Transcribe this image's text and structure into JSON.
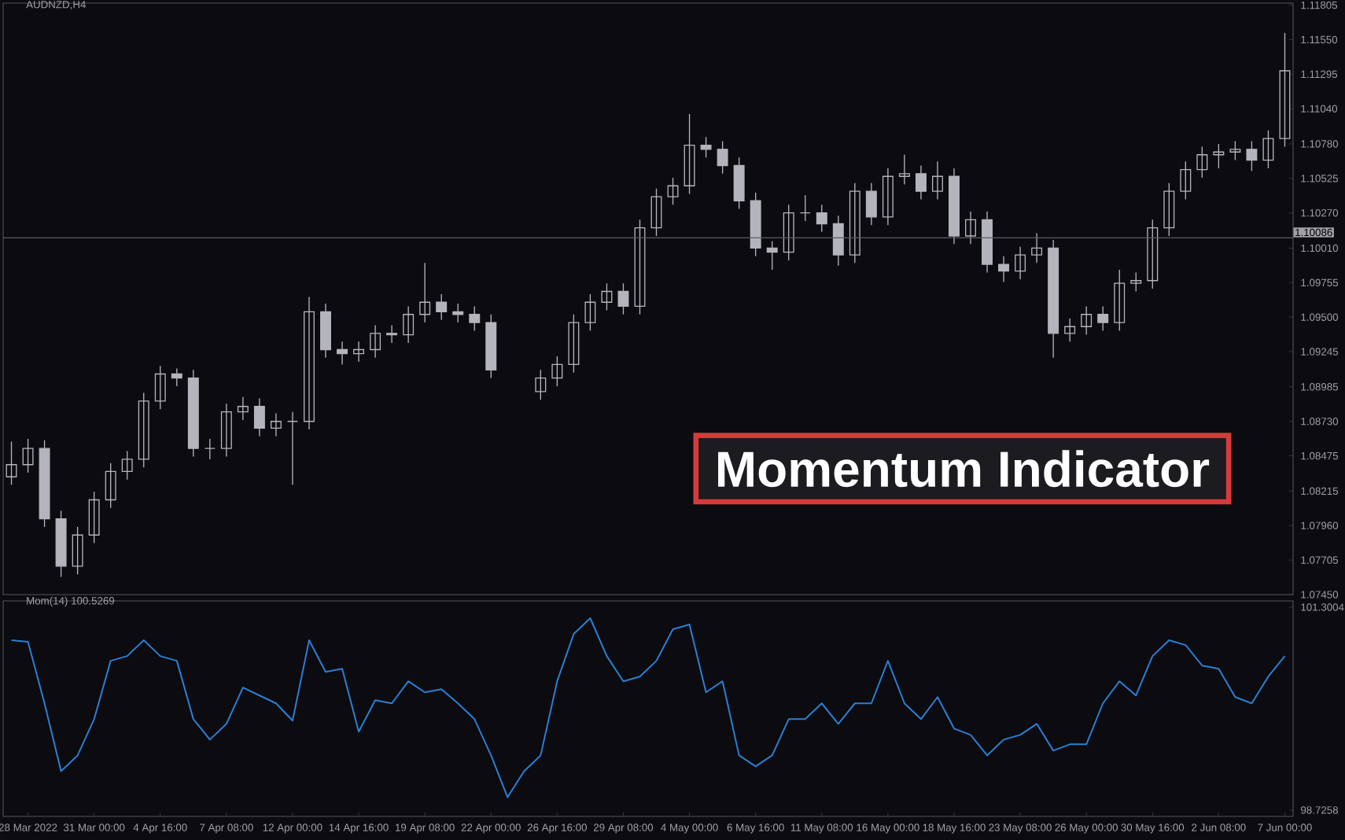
{
  "chart_data": [
    {
      "type": "candlestick",
      "title": "AUDNZD,H4",
      "color": "#b4b4bc",
      "tick_labels": "y",
      "categories": [
        null,
        null,
        null,
        null,
        null,
        null,
        null,
        null,
        null,
        null,
        null,
        null,
        null,
        null,
        null,
        null,
        null,
        null,
        null,
        null,
        null,
        null,
        null,
        null,
        null,
        null,
        null,
        null,
        null,
        null,
        null,
        null,
        null,
        null,
        null,
        null,
        null,
        null,
        null,
        null,
        null,
        null,
        null,
        null,
        null,
        null,
        null,
        null,
        null,
        null,
        null,
        null,
        null,
        null,
        null,
        null,
        null,
        null,
        null,
        null,
        null,
        null,
        null,
        null,
        null,
        null,
        null,
        null,
        null,
        null,
        null,
        null,
        null,
        null,
        null,
        null,
        null,
        null
      ],
      "ohlc": [
        [
          1.0832,
          1.0858,
          1.0826,
          1.0841
        ],
        [
          1.0841,
          1.086,
          1.0835,
          1.0853
        ],
        [
          1.0853,
          1.0859,
          1.0795,
          1.0801
        ],
        [
          1.0801,
          1.0807,
          1.0758,
          1.0766
        ],
        [
          1.0766,
          1.0795,
          1.076,
          1.0789
        ],
        [
          1.0789,
          1.0821,
          1.0783,
          1.0815
        ],
        [
          1.0815,
          1.0842,
          1.0809,
          1.0836
        ],
        [
          1.0836,
          1.0851,
          1.083,
          1.0845
        ],
        [
          1.0845,
          1.0894,
          1.0839,
          1.0888
        ],
        [
          1.0888,
          1.0914,
          1.0882,
          1.0908
        ],
        [
          1.0908,
          1.0912,
          1.0899,
          1.0905
        ],
        [
          1.0905,
          1.0911,
          1.0847,
          1.0853
        ],
        [
          1.0853,
          1.086,
          1.0845,
          1.0853
        ],
        [
          1.0853,
          1.0886,
          1.0847,
          1.088
        ],
        [
          1.088,
          1.0891,
          1.0874,
          1.0884
        ],
        [
          1.0884,
          1.089,
          1.0862,
          1.0868
        ],
        [
          1.0868,
          1.0879,
          1.0862,
          1.0873
        ],
        [
          1.0873,
          1.088,
          1.0826,
          1.0873
        ],
        [
          1.0873,
          1.0965,
          1.0867,
          1.0954
        ],
        [
          1.0954,
          1.096,
          1.092,
          1.0926
        ],
        [
          1.0926,
          1.0932,
          1.0915,
          1.0923
        ],
        [
          1.0923,
          1.0932,
          1.0917,
          1.0926
        ],
        [
          1.0926,
          1.0944,
          1.092,
          1.0938
        ],
        [
          1.0938,
          1.0944,
          1.0931,
          1.0937
        ],
        [
          1.0937,
          1.0958,
          1.0931,
          1.0952
        ],
        [
          1.0952,
          1.099,
          1.0946,
          1.0961
        ],
        [
          1.0961,
          1.0967,
          1.0948,
          1.0954
        ],
        [
          1.0954,
          1.096,
          1.0946,
          1.0952
        ],
        [
          1.0952,
          1.0958,
          1.094,
          1.0946
        ],
        [
          1.0946,
          1.0952,
          1.0905,
          1.0911
        ],
        null,
        null,
        [
          1.0895,
          1.0911,
          1.0889,
          1.0905
        ],
        [
          1.0905,
          1.0921,
          1.0899,
          1.0915
        ],
        [
          1.0915,
          1.0952,
          1.0909,
          1.0946
        ],
        [
          1.0946,
          1.0967,
          1.094,
          1.0961
        ],
        [
          1.0961,
          1.0975,
          1.0955,
          1.0969
        ],
        [
          1.0969,
          1.0975,
          1.0952,
          1.0958
        ],
        [
          1.0958,
          1.1022,
          1.0952,
          1.1016
        ],
        [
          1.1016,
          1.1045,
          1.101,
          1.1039
        ],
        [
          1.1039,
          1.1053,
          1.1033,
          1.1047
        ],
        [
          1.1047,
          1.11,
          1.1041,
          1.1077
        ],
        [
          1.1077,
          1.1083,
          1.1068,
          1.1074
        ],
        [
          1.1074,
          1.108,
          1.1056,
          1.1062
        ],
        [
          1.1062,
          1.1068,
          1.103,
          1.1036
        ],
        [
          1.1036,
          1.1042,
          1.0995,
          1.1001
        ],
        [
          1.1001,
          1.1006,
          1.0985,
          1.0998
        ],
        [
          1.0998,
          1.1033,
          1.0992,
          1.1027
        ],
        [
          1.1027,
          1.104,
          1.1021,
          1.1027
        ],
        [
          1.1027,
          1.1033,
          1.1013,
          1.1019
        ],
        [
          1.1019,
          1.1025,
          1.0988,
          1.0996
        ],
        [
          1.0996,
          1.1049,
          1.099,
          1.1043
        ],
        [
          1.1043,
          1.1049,
          1.1018,
          1.1024
        ],
        [
          1.1024,
          1.106,
          1.1018,
          1.1054
        ],
        [
          1.1054,
          1.107,
          1.1048,
          1.1056
        ],
        [
          1.1056,
          1.1062,
          1.1037,
          1.1043
        ],
        [
          1.1043,
          1.1065,
          1.1037,
          1.1054
        ],
        [
          1.1054,
          1.106,
          1.1004,
          1.101
        ],
        [
          1.101,
          1.1028,
          1.1004,
          1.1022
        ],
        [
          1.1022,
          1.1028,
          1.0983,
          1.0989
        ],
        [
          1.0989,
          1.0995,
          1.0976,
          1.0984
        ],
        [
          1.0984,
          1.1002,
          1.0978,
          1.0996
        ],
        [
          1.0996,
          1.1012,
          1.099,
          1.1001
        ],
        [
          1.1001,
          1.1007,
          1.092,
          1.0938
        ],
        [
          1.0938,
          1.0949,
          1.0932,
          1.0943
        ],
        [
          1.0943,
          1.0958,
          1.0937,
          1.0952
        ],
        [
          1.0952,
          1.0958,
          1.094,
          1.0946
        ],
        [
          1.0946,
          1.0985,
          1.094,
          1.0975
        ],
        [
          1.0975,
          1.0983,
          1.0969,
          1.0977
        ],
        [
          1.0977,
          1.1022,
          1.0971,
          1.1016
        ],
        [
          1.1016,
          1.1049,
          1.101,
          1.1043
        ],
        [
          1.1043,
          1.1065,
          1.1037,
          1.1059
        ],
        [
          1.1059,
          1.1076,
          1.1053,
          1.107
        ],
        [
          1.107,
          1.1078,
          1.106,
          1.1072
        ],
        [
          1.1072,
          1.108,
          1.1066,
          1.1074
        ],
        [
          1.1074,
          1.108,
          1.1058,
          1.1066
        ],
        [
          1.1066,
          1.1088,
          1.106,
          1.1082
        ],
        [
          1.1082,
          1.116,
          1.1076,
          1.1132
        ]
      ],
      "ylim": [
        1.0745,
        1.1182
      ],
      "yticks": [
        {
          "value": 1.0745,
          "label": "1.07450"
        },
        1.07705,
        {
          "value": 1.0796,
          "label": "1.07960"
        },
        1.08215,
        1.08475,
        {
          "value": 1.0873,
          "label": "1.08730"
        },
        1.08985,
        1.09245,
        {
          "value": 1.095,
          "label": "1.09500"
        },
        1.09755,
        {
          "value": 1.1001,
          "label": "1.10010"
        },
        {
          "value": 1.1027,
          "label": "1.10270"
        },
        1.10525,
        {
          "value": 1.1078,
          "label": "1.10780"
        },
        {
          "value": 1.1104,
          "label": "1.11040"
        },
        1.11295,
        {
          "value": 1.1155,
          "label": "1.11550"
        },
        1.11805
      ],
      "ref_lines": [
        {
          "axis": "y",
          "value": 1.10086,
          "label": "1.10086",
          "color": "#5a5a62"
        }
      ],
      "annotations": [
        "Momentum Indicator"
      ]
    },
    {
      "type": "line",
      "title": "Mom(14) 100.5269",
      "color": "#2a7fd4",
      "categories": [
        null,
        "28 Mar 2022",
        null,
        null,
        null,
        "31 Mar 00:00",
        null,
        null,
        null,
        "4 Apr 16:00",
        null,
        null,
        null,
        "7 Apr 08:00",
        null,
        null,
        null,
        "12 Apr 00:00",
        null,
        null,
        null,
        "14 Apr 16:00",
        null,
        null,
        null,
        "19 Apr 08:00",
        null,
        null,
        null,
        "22 Apr 00:00",
        null,
        null,
        null,
        "26 Apr 16:00",
        null,
        null,
        null,
        "29 Apr 08:00",
        null,
        null,
        null,
        "4 May 00:00",
        null,
        null,
        null,
        "6 May 16:00",
        null,
        null,
        null,
        "11 May 08:00",
        null,
        null,
        null,
        "16 May 00:00",
        null,
        null,
        null,
        "18 May 16:00",
        null,
        null,
        null,
        "23 May 08:00",
        null,
        null,
        null,
        "26 May 00:00",
        null,
        null,
        null,
        "30 May 16:00",
        null,
        null,
        null,
        "2 Jun 08:00",
        null,
        null,
        null,
        "7 Jun 00:00"
      ],
      "values": [
        100.88,
        100.86,
        100.08,
        99.22,
        99.42,
        99.88,
        100.62,
        100.68,
        100.88,
        100.68,
        100.62,
        99.88,
        99.62,
        99.82,
        100.28,
        100.18,
        100.08,
        99.86,
        100.88,
        100.48,
        100.52,
        99.72,
        100.12,
        100.08,
        100.36,
        100.22,
        100.26,
        100.08,
        99.88,
        99.42,
        98.89,
        99.22,
        99.42,
        100.36,
        100.96,
        101.16,
        100.68,
        100.36,
        100.42,
        100.62,
        101.02,
        101.08,
        100.22,
        100.36,
        99.42,
        99.28,
        99.42,
        99.88,
        99.88,
        100.08,
        99.82,
        100.08,
        100.08,
        100.62,
        100.08,
        99.88,
        100.16,
        99.76,
        99.68,
        99.42,
        99.62,
        99.68,
        99.82,
        99.48,
        99.56,
        99.56,
        100.08,
        100.36,
        100.18,
        100.68,
        100.88,
        100.82,
        100.56,
        100.52,
        100.16,
        100.08,
        100.42,
        100.68
      ],
      "ylim": [
        98.646,
        101.38
      ],
      "yticks": [
        98.7258,
        101.3004
      ]
    }
  ]
}
